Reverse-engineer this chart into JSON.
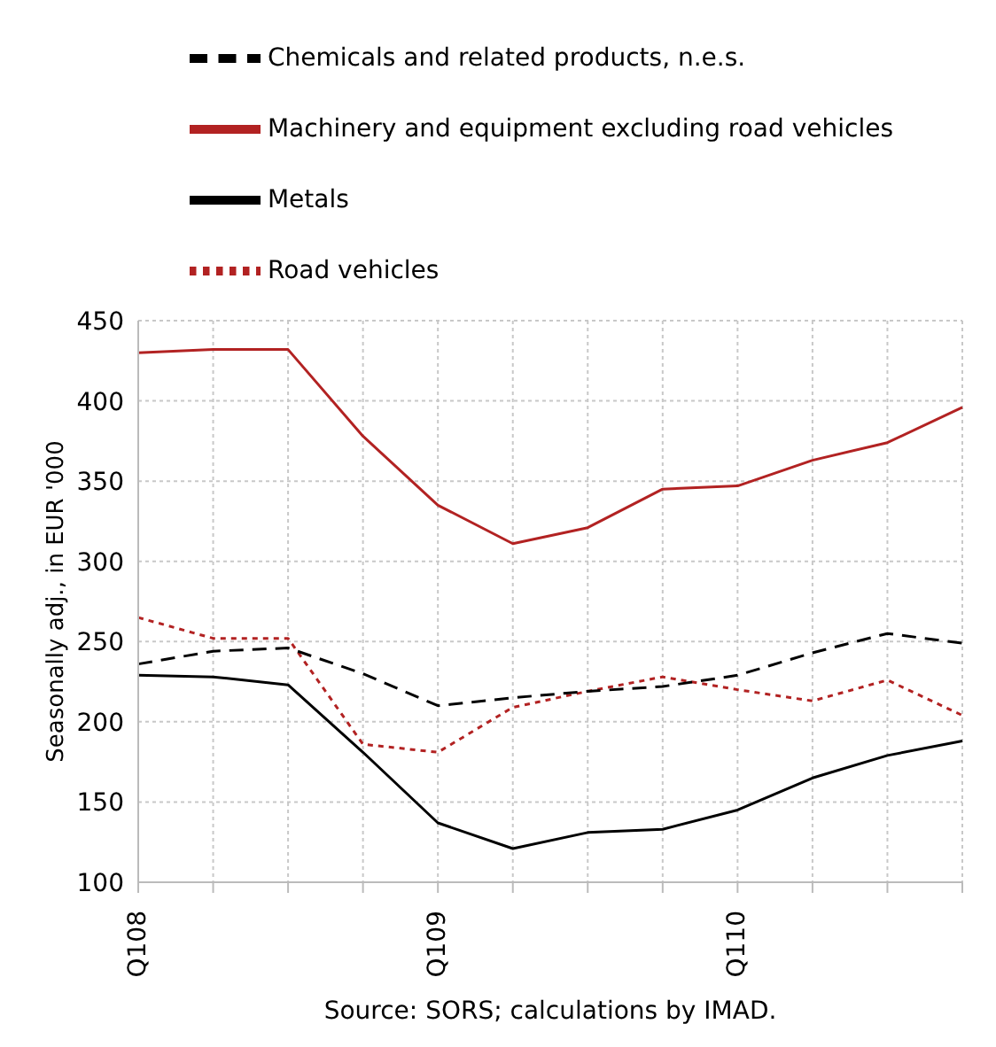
{
  "chart_data": {
    "type": "line",
    "ylabel": "Seasonally adj., in EUR '000",
    "categories": [
      "Q108",
      null,
      null,
      null,
      "Q109",
      null,
      null,
      null,
      "Q110",
      null,
      null,
      null
    ],
    "series": [
      {
        "name": "Machinery and equipment excluding road vehicles",
        "color": "#b22222",
        "line_style": "solid",
        "values": [
          430,
          432,
          432,
          378,
          335,
          311,
          321,
          345,
          347,
          363,
          374,
          396
        ]
      },
      {
        "name": "Road vehicles",
        "color": "#b22222",
        "line_style": "dotted",
        "values": [
          265,
          252,
          252,
          186,
          181,
          209,
          219,
          228,
          220,
          213,
          226,
          204
        ]
      },
      {
        "name": "Chemicals and related products, n.e.s.",
        "color": "#000000",
        "line_style": "dashed",
        "values": [
          236,
          244,
          246,
          230,
          210,
          215,
          219,
          222,
          229,
          243,
          255,
          249
        ]
      },
      {
        "name": "Metals",
        "color": "#000000",
        "line_style": "solid",
        "values": [
          229,
          228,
          223,
          181,
          137,
          121,
          131,
          133,
          145,
          165,
          179,
          188
        ]
      }
    ],
    "ylim": [
      100,
      450
    ],
    "yticks": [
      100,
      150,
      200,
      250,
      300,
      350,
      400,
      450
    ],
    "grid": true,
    "legend": "top",
    "marker": "none",
    "annotations": [
      "Source: SORS; calculations by IMAD."
    ]
  }
}
